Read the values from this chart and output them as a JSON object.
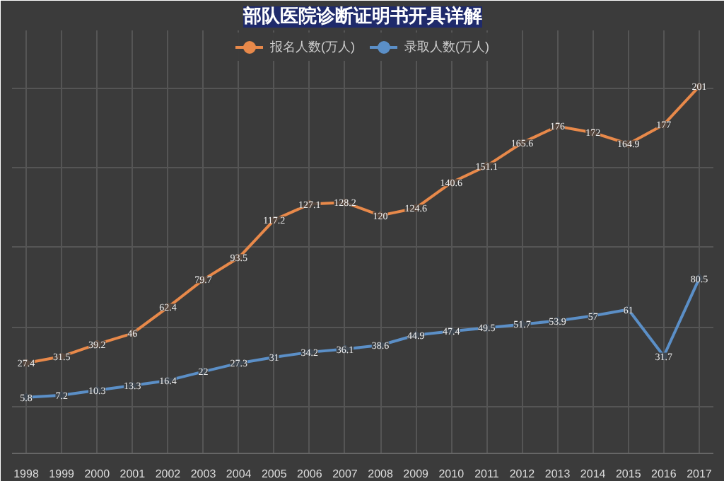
{
  "chart_data": {
    "type": "line",
    "title": "部队医院诊断证明书开具详解",
    "categories": [
      "1998",
      "1999",
      "2000",
      "2001",
      "2002",
      "2003",
      "2004",
      "2005",
      "2006",
      "2007",
      "2008",
      "2009",
      "2010",
      "2011",
      "2012",
      "2013",
      "2014",
      "2015",
      "2016",
      "2017"
    ],
    "series": [
      {
        "name": "报名人数(万人)",
        "color": "#e8894a",
        "values": [
          27.4,
          31.5,
          39.2,
          46,
          62.4,
          79.7,
          93.5,
          117.2,
          127.1,
          128.2,
          120,
          124.6,
          140.6,
          151.1,
          165.6,
          176,
          172,
          164.9,
          177,
          201
        ]
      },
      {
        "name": "录取人数(万人)",
        "color": "#5b8fc7",
        "values": [
          5.8,
          7.2,
          10.3,
          13.3,
          16.4,
          22,
          27.3,
          31,
          34.2,
          36.1,
          38.6,
          44.9,
          47.4,
          49.5,
          51.7,
          53.9,
          57,
          61,
          31.7,
          80.5
        ]
      }
    ],
    "data_labels": true,
    "legend": "top",
    "grid": true,
    "marker": "circle",
    "line_style": "solid"
  }
}
